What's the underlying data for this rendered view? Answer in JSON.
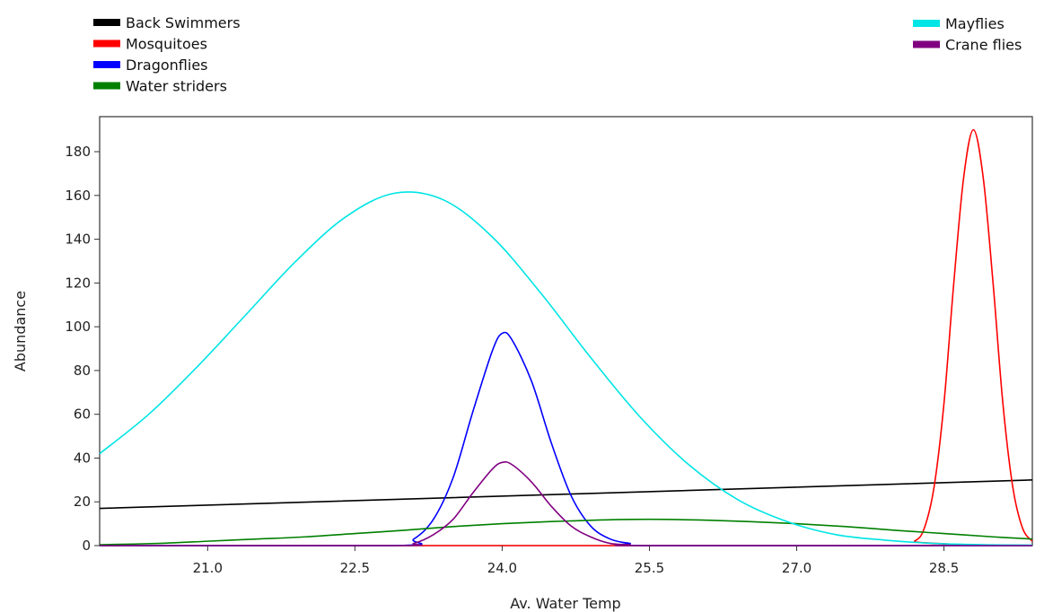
{
  "chart_data": {
    "type": "line",
    "xlabel": "Av. Water Temp",
    "ylabel": "Abundance",
    "xlim": [
      19.9,
      29.4
    ],
    "ylim": [
      0,
      196
    ],
    "xticks": [
      "21.0",
      "22.5",
      "24.0",
      "25.5",
      "27.0",
      "28.5"
    ],
    "yticks": [
      "0",
      "20",
      "40",
      "60",
      "80",
      "100",
      "120",
      "140",
      "160",
      "180"
    ],
    "grid": false,
    "legend_left": [
      "Back Swimmers",
      "Mosquitoes",
      "Dragonflies",
      "Water striders"
    ],
    "legend_right": [
      "Mayflies",
      "Crane flies"
    ],
    "series": [
      {
        "name": "Back Swimmers",
        "color": "#000000",
        "x": [
          19.9,
          29.4
        ],
        "y": [
          17,
          30
        ]
      },
      {
        "name": "Mosquitoes",
        "color": "#ff0000",
        "x": [
          19.9,
          28.0,
          28.2,
          28.3,
          28.4,
          28.5,
          28.6,
          28.7,
          28.8,
          28.9,
          29.0,
          29.1,
          29.2,
          29.3,
          29.4
        ],
        "y": [
          0,
          0,
          2,
          8,
          27,
          65,
          120,
          168,
          190,
          168,
          120,
          65,
          27,
          8,
          2
        ]
      },
      {
        "name": "Dragonflies",
        "color": "#0000ff",
        "x": [
          19.9,
          22.9,
          23.1,
          23.3,
          23.5,
          23.7,
          23.9,
          24.0,
          24.1,
          24.3,
          24.5,
          24.7,
          24.9,
          25.1,
          25.3,
          25.5,
          29.4
        ],
        "y": [
          0,
          0,
          3,
          12,
          31,
          61,
          89,
          97,
          94,
          75,
          47,
          23,
          9,
          3,
          1,
          0,
          0
        ]
      },
      {
        "name": "Water striders",
        "color": "#008000",
        "x": [
          19.9,
          20.5,
          21.0,
          21.5,
          22.0,
          22.5,
          23.0,
          23.5,
          24.0,
          24.5,
          25.0,
          25.5,
          26.0,
          26.5,
          27.0,
          27.5,
          28.0,
          28.5,
          29.0,
          29.4
        ],
        "y": [
          0.4,
          1,
          2,
          3,
          4,
          5.5,
          7,
          8.7,
          10,
          11,
          11.7,
          12,
          11.7,
          11,
          10,
          8.7,
          7,
          5.5,
          4,
          3
        ]
      },
      {
        "name": "Mayflies",
        "color": "#00e5e5",
        "x": [
          19.9,
          20.4,
          20.9,
          21.4,
          21.9,
          22.4,
          22.9,
          23.4,
          23.9,
          24.4,
          24.9,
          25.4,
          25.9,
          26.4,
          26.9,
          27.4,
          27.9,
          28.4,
          28.9,
          29.4
        ],
        "y": [
          42,
          60,
          82,
          106,
          130,
          150,
          161,
          158,
          141,
          115,
          86,
          59,
          37,
          21,
          11,
          5,
          2.5,
          1,
          0.4,
          0.2
        ]
      },
      {
        "name": "Crane flies",
        "color": "#800080",
        "x": [
          19.9,
          22.9,
          23.1,
          23.3,
          23.5,
          23.7,
          23.9,
          24.0,
          24.1,
          24.3,
          24.5,
          24.7,
          24.9,
          25.1,
          25.3,
          25.5,
          29.4
        ],
        "y": [
          0,
          0,
          1,
          5,
          12,
          24,
          35,
          38,
          37,
          29,
          18,
          9,
          4,
          1,
          0.4,
          0,
          0
        ]
      }
    ]
  }
}
